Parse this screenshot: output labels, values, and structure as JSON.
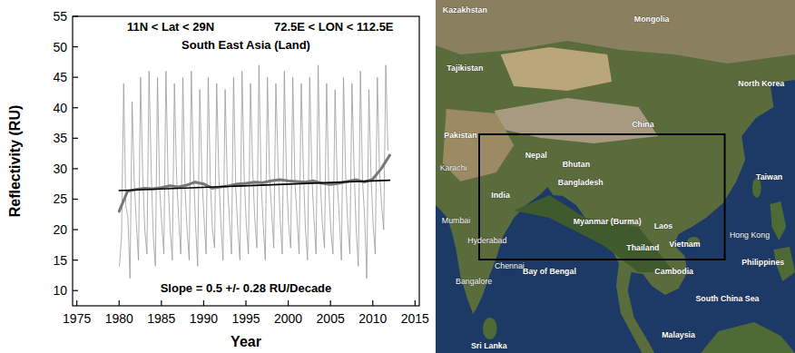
{
  "chart_data": {
    "type": "line",
    "xlabel": "Year",
    "ylabel": "Reflectivity (RU)",
    "annotations": [
      "11N < Lat < 29N",
      "72.5E < LON < 112.5E",
      "South East Asia (Land)",
      "Slope = 0.5 +/- 0.28 RU/Decade"
    ],
    "xlim": [
      1974.5,
      2015.5
    ],
    "xticks": [
      1975,
      1980,
      1985,
      1990,
      1995,
      2000,
      2005,
      2010,
      2015
    ],
    "ylim": [
      7.5,
      55
    ],
    "yticks": [
      10,
      15,
      20,
      25,
      30,
      35,
      40,
      45,
      50,
      55
    ],
    "grid": false,
    "series": [
      {
        "type": "line",
        "color": "#9a9a9a",
        "x": [
          1980.04,
          1980.29,
          1980.54,
          1980.79,
          1981.04,
          1981.29,
          1981.54,
          1981.79,
          1982.04,
          1982.29,
          1982.54,
          1982.79,
          1983.04,
          1983.29,
          1983.54,
          1983.79,
          1984.04,
          1984.29,
          1984.54,
          1984.79,
          1985.04,
          1985.29,
          1985.54,
          1985.79,
          1986.04,
          1986.29,
          1986.54,
          1986.79,
          1987.04,
          1987.29,
          1987.54,
          1987.79,
          1988.04,
          1988.29,
          1988.54,
          1988.79,
          1989.04,
          1989.29,
          1989.54,
          1989.79,
          1990.04,
          1990.29,
          1990.54,
          1990.79,
          1991.04,
          1991.29,
          1991.54,
          1991.79,
          1992.04,
          1992.29,
          1992.54,
          1992.79,
          1993.04,
          1993.29,
          1993.54,
          1993.79,
          1994.04,
          1994.29,
          1994.54,
          1994.79,
          1995.04,
          1995.29,
          1995.54,
          1995.79,
          1996.04,
          1996.29,
          1996.54,
          1996.79,
          1997.04,
          1997.29,
          1997.54,
          1997.79,
          1998.04,
          1998.29,
          1998.54,
          1998.79,
          1999.04,
          1999.29,
          1999.54,
          1999.79,
          2000.04,
          2000.29,
          2000.54,
          2000.79,
          2001.04,
          2001.29,
          2001.54,
          2001.79,
          2002.04,
          2002.29,
          2002.54,
          2002.79,
          2003.04,
          2003.29,
          2003.54,
          2003.79,
          2004.04,
          2004.29,
          2004.54,
          2004.79,
          2005.04,
          2005.29,
          2005.54,
          2005.79,
          2006.04,
          2006.29,
          2006.54,
          2006.79,
          2007.04,
          2007.29,
          2007.54,
          2007.79,
          2008.04,
          2008.29,
          2008.54,
          2008.79,
          2009.04,
          2009.29,
          2009.54,
          2009.79,
          2010.04,
          2010.29,
          2010.54,
          2010.79,
          2011.04,
          2011.29,
          2011.54,
          2011.79
        ],
        "values": [
          14,
          19,
          44,
          24,
          22,
          12,
          41,
          28,
          21,
          15,
          45,
          29,
          20,
          16,
          46,
          30,
          19,
          14,
          45,
          27,
          21,
          16,
          46,
          28,
          20,
          15,
          44,
          29,
          22,
          16,
          45,
          27,
          20,
          15,
          46,
          30,
          21,
          14,
          43,
          29,
          22,
          16,
          45,
          28,
          20,
          17,
          44,
          29,
          21,
          15,
          43,
          28,
          22,
          16,
          45,
          27,
          20,
          15,
          46,
          29,
          21,
          16,
          44,
          30,
          22,
          17,
          47,
          28,
          21,
          15,
          45,
          29,
          23,
          17,
          44,
          31,
          22,
          16,
          46,
          29,
          21,
          17,
          45,
          28,
          22,
          16,
          44,
          30,
          20,
          15,
          45,
          29,
          22,
          16,
          47,
          28,
          21,
          17,
          44,
          27,
          20,
          16,
          43,
          28,
          22,
          15,
          45,
          29,
          21,
          16,
          44,
          30,
          20,
          14,
          46,
          28,
          22,
          12,
          43,
          29,
          21,
          16,
          45,
          30,
          24,
          20,
          47,
          33
        ]
      },
      {
        "type": "line",
        "color": "#777777",
        "x": [
          1980,
          1981,
          1982,
          1983,
          1984,
          1985,
          1986,
          1987,
          1988,
          1989,
          1990,
          1991,
          1992,
          1993,
          1994,
          1995,
          1996,
          1997,
          1998,
          1999,
          2000,
          2001,
          2002,
          2003,
          2004,
          2005,
          2006,
          2007,
          2008,
          2009,
          2010,
          2011,
          2012
        ],
        "values": [
          23,
          26.3,
          26.6,
          26.8,
          26.7,
          26.9,
          27.2,
          27.0,
          27.3,
          27.8,
          27.5,
          26.8,
          27.0,
          27.2,
          27.5,
          27.6,
          27.8,
          27.7,
          28.0,
          28.2,
          28.0,
          27.9,
          27.8,
          28.0,
          27.6,
          27.4,
          27.6,
          27.9,
          28.2,
          27.8,
          28.3,
          30.0,
          32.2
        ]
      },
      {
        "type": "line",
        "color": "#000000",
        "x": [
          1980,
          2012
        ],
        "values": [
          26.4,
          28.1
        ]
      }
    ]
  },
  "map": {
    "labels": [
      "Kazakhstan",
      "Mongolia",
      "Tajikistan",
      "Pakistan",
      "China",
      "North Korea",
      "Nepal",
      "Bhutan",
      "India",
      "Bangladesh",
      "Karachi",
      "Mumbai",
      "Hyderabad",
      "Bangalore",
      "Chennai",
      "Bay of Bengal",
      "Sri Lanka",
      "Myanmar (Burma)",
      "Laos",
      "Thailand",
      "Vietnam",
      "Cambodia",
      "Hong Kong",
      "Taiwan",
      "Philippines",
      "South China Sea",
      "Malaysia"
    ]
  }
}
